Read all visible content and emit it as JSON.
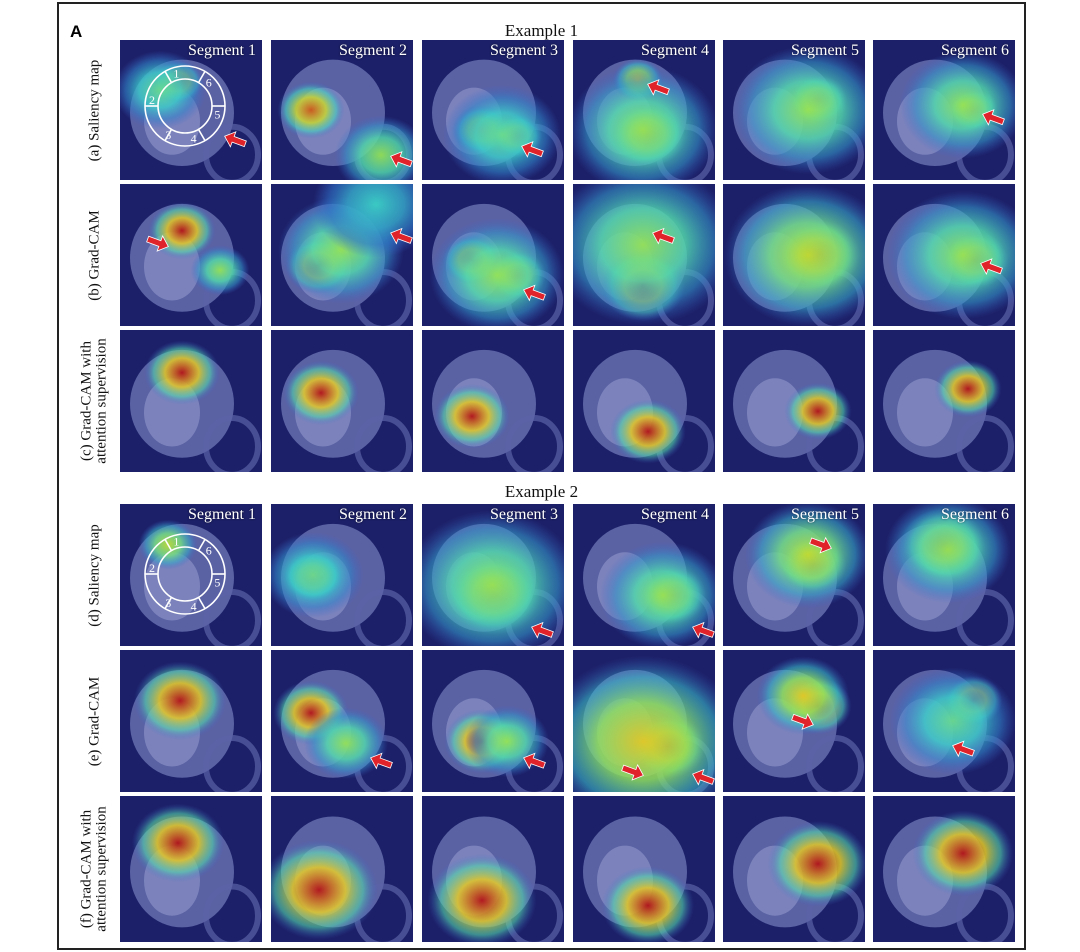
{
  "figure": {
    "panel_letter": "A",
    "examples": [
      {
        "title": "Example 1",
        "segment_labels": [
          "Segment 1",
          "Segment 2",
          "Segment 3",
          "Segment 4",
          "Segment 5",
          "Segment 6"
        ],
        "rows": [
          {
            "label_lines": [
              "(a) Saliency map"
            ]
          },
          {
            "label_lines": [
              "(b) Grad-CAM"
            ]
          },
          {
            "label_lines": [
              "(c) Grad-CAM with",
              "attention supervision"
            ]
          }
        ]
      },
      {
        "title": "Example 2",
        "segment_labels": [
          "Segment 1",
          "Segment 2",
          "Segment 3",
          "Segment 4",
          "Segment 5",
          "Segment 6"
        ],
        "rows": [
          {
            "label_lines": [
              "(d) Saliency map"
            ]
          },
          {
            "label_lines": [
              "(e) Grad-CAM"
            ]
          },
          {
            "label_lines": [
              "(f) Grad-CAM with",
              "attention supervision"
            ]
          }
        ]
      }
    ],
    "segment_diagram_numbers": [
      "1",
      "2",
      "3",
      "4",
      "5",
      "6"
    ],
    "colors": {
      "background": "#1c2068",
      "arrow": "#e0222a",
      "heat_core": "#b3121b",
      "heat_mid": "#f0c020",
      "heat_outer": "#3fd0c8"
    }
  }
}
